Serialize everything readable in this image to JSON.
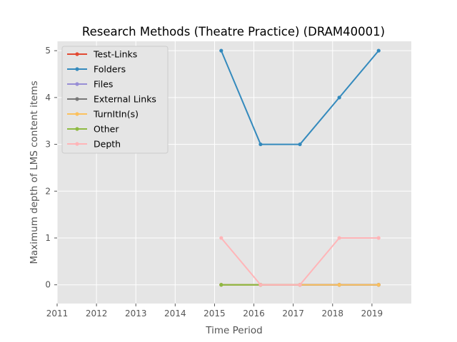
{
  "chart_data": {
    "type": "line",
    "title": "Research Methods (Theatre Practice) (DRAM40001)",
    "xlabel": "Time Period",
    "ylabel": "Maximum depth of LMS content items",
    "xlim": [
      2011,
      2020
    ],
    "ylim": [
      -0.4,
      5.2
    ],
    "xticks": [
      "2011",
      "2012",
      "2013",
      "2014",
      "2015",
      "2016",
      "2017",
      "2018",
      "2019"
    ],
    "yticks": [
      "0",
      "1",
      "2",
      "3",
      "4",
      "5"
    ],
    "grid": true,
    "legend_position": "top-left",
    "x": [
      2015.17,
      2016.17,
      2017.17,
      2018.17,
      2019.17
    ],
    "series": [
      {
        "name": "Test-Links",
        "color": "#E24A33",
        "values": [
          0,
          0,
          0,
          0,
          0
        ]
      },
      {
        "name": "Folders",
        "color": "#348ABD",
        "values": [
          5,
          3,
          3,
          4,
          5
        ]
      },
      {
        "name": "Files",
        "color": "#988ED5",
        "values": [
          0,
          0,
          0,
          0,
          0
        ]
      },
      {
        "name": "External Links",
        "color": "#777777",
        "values": [
          0,
          0,
          0,
          0,
          0
        ]
      },
      {
        "name": "TurnItIn(s)",
        "color": "#FBC15E",
        "values": [
          0,
          0,
          0,
          0,
          0
        ]
      },
      {
        "name": "Other",
        "color": "#8EBA42",
        "values": [
          0,
          0,
          null,
          null,
          null
        ]
      },
      {
        "name": "Depth",
        "color": "#FFB5B8",
        "values": [
          1,
          0,
          0,
          1,
          1
        ]
      }
    ]
  }
}
